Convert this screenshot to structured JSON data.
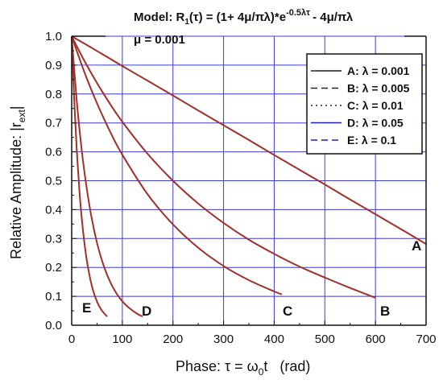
{
  "chart_data": {
    "type": "line",
    "title": "Model: R",
    "title_sub": "1",
    "title_mid": "(τ) = (1+ 4μ/πλ)*e",
    "title_sup": "-0.5λτ",
    "title_end": "- 4μ/πλ",
    "subtitle": "μ = 0.001",
    "xlabel_prefix": "Phase: τ = ω",
    "xlabel_sub": "0",
    "xlabel_suffix": "t   (rad)",
    "ylabel_prefix": "Relative Amplitude: |r",
    "ylabel_sub": "ext",
    "ylabel_suffix": "|",
    "xlim": [
      0,
      700
    ],
    "ylim": [
      0,
      1.0
    ],
    "xticks": [
      0,
      100,
      200,
      300,
      400,
      500,
      600,
      700
    ],
    "yticks": [
      "0.0",
      "0.1",
      "0.2",
      "0.3",
      "0.4",
      "0.5",
      "0.6",
      "0.7",
      "0.8",
      "0.9",
      "1.0"
    ],
    "grid": true,
    "legend_position": "top-right",
    "colors": {
      "curve": "#a0302a",
      "grid": "#3c3ccf",
      "legend_solid_dark": "#222222",
      "legend_blue": "#1c1cc8",
      "axis": "#111111"
    },
    "legend": [
      {
        "key": "A",
        "label": "A: λ = 0.001",
        "style": "solid"
      },
      {
        "key": "B",
        "label": "B: λ = 0.005",
        "style": "dashed"
      },
      {
        "key": "C",
        "label": "C: λ = 0.01",
        "style": "dotted"
      },
      {
        "key": "D",
        "label": "D: λ = 0.05",
        "style": "solid-blue"
      },
      {
        "key": "E",
        "label": "E: λ = 0.1",
        "style": "dashed-blue"
      }
    ],
    "series": [
      {
        "name": "A",
        "x": [
          0,
          50,
          100,
          150,
          200,
          250,
          300,
          350,
          400,
          450,
          500,
          550,
          600,
          650,
          700
        ],
        "values": [
          1.0,
          0.949,
          0.897,
          0.846,
          0.795,
          0.743,
          0.692,
          0.641,
          0.589,
          0.538,
          0.487,
          0.435,
          0.384,
          0.333,
          0.281
        ]
      },
      {
        "name": "B",
        "x": [
          0,
          25,
          50,
          75,
          100,
          150,
          200,
          250,
          300,
          350,
          400,
          450,
          500,
          550,
          600
        ],
        "values": [
          1.0,
          0.915,
          0.838,
          0.768,
          0.704,
          0.593,
          0.5,
          0.421,
          0.354,
          0.296,
          0.247,
          0.203,
          0.165,
          0.129,
          0.095
        ]
      },
      {
        "name": "C",
        "x": [
          0,
          25,
          50,
          75,
          100,
          150,
          200,
          250,
          300,
          350,
          400,
          415
        ],
        "values": [
          1.0,
          0.876,
          0.768,
          0.673,
          0.59,
          0.453,
          0.349,
          0.268,
          0.205,
          0.156,
          0.117,
          0.107
        ]
      },
      {
        "name": "D",
        "x": [
          0,
          10,
          20,
          30,
          40,
          50,
          60,
          70,
          80,
          90,
          100,
          110,
          120,
          130,
          140
        ],
        "values": [
          1.0,
          0.776,
          0.603,
          0.47,
          0.366,
          0.285,
          0.223,
          0.174,
          0.136,
          0.106,
          0.083,
          0.065,
          0.051,
          0.039,
          0.03
        ]
      },
      {
        "name": "E",
        "x": [
          0,
          5,
          10,
          15,
          20,
          25,
          30,
          35,
          40,
          45,
          50,
          55,
          60,
          70
        ],
        "values": [
          1.0,
          0.779,
          0.607,
          0.472,
          0.368,
          0.287,
          0.223,
          0.174,
          0.135,
          0.105,
          0.082,
          0.064,
          0.05,
          0.03
        ]
      }
    ],
    "curve_labels": [
      "A",
      "B",
      "C",
      "D",
      "E"
    ]
  }
}
